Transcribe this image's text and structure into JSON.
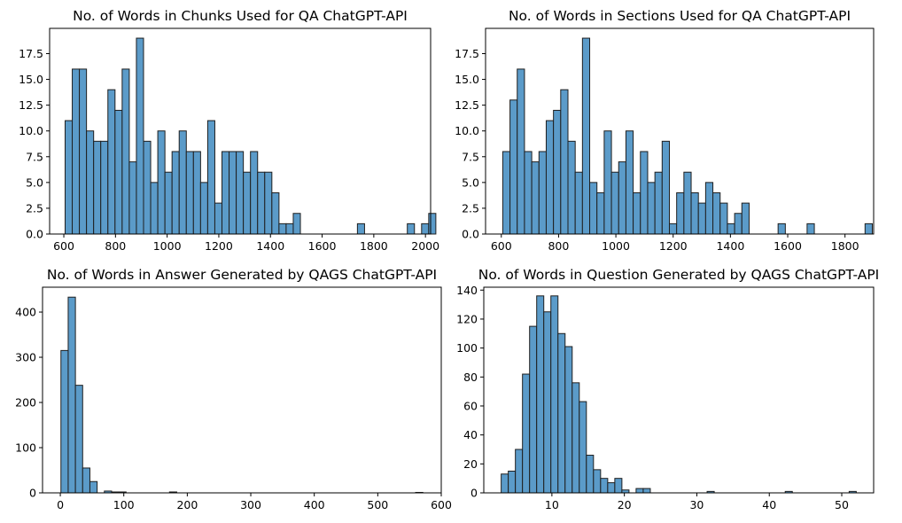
{
  "chart_data": [
    {
      "type": "histogram",
      "title": "No. of Words in Chunks Used for QA ChatGPT-API",
      "xlabel": "",
      "ylabel": "",
      "bin_start": 605,
      "bin_width": 27.6,
      "counts": [
        11,
        16,
        16,
        10,
        9,
        9,
        14,
        12,
        16,
        7,
        19,
        9,
        5,
        10,
        6,
        8,
        10,
        8,
        8,
        5,
        11,
        3,
        8,
        8,
        8,
        6,
        8,
        6,
        6,
        4,
        1,
        1,
        2,
        0,
        0,
        0,
        0,
        0,
        0,
        0,
        0,
        1,
        0,
        0,
        0,
        0,
        0,
        0,
        1,
        0,
        1,
        2
      ],
      "xlim": [
        545,
        2020
      ],
      "ylim": [
        0,
        19.95
      ],
      "xticks": [
        600,
        800,
        1000,
        1200,
        1400,
        1600,
        1800,
        2000
      ],
      "yticks": [
        0.0,
        2.5,
        5.0,
        7.5,
        10.0,
        12.5,
        15.0,
        17.5
      ],
      "ytick_labels": [
        "0.0",
        "2.5",
        "5.0",
        "7.5",
        "10.0",
        "12.5",
        "15.0",
        "17.5"
      ],
      "grid": false,
      "color": "#5b9bc9"
    },
    {
      "type": "histogram",
      "title": "No. of Words in Sections Used for QA ChatGPT-API",
      "xlabel": "",
      "ylabel": "",
      "bin_start": 605,
      "bin_width": 25.3,
      "counts": [
        8,
        13,
        16,
        8,
        7,
        8,
        11,
        12,
        14,
        9,
        6,
        19,
        5,
        4,
        10,
        6,
        7,
        10,
        4,
        8,
        5,
        6,
        9,
        1,
        4,
        6,
        4,
        3,
        5,
        4,
        3,
        1,
        2,
        3,
        0,
        0,
        0,
        0,
        1,
        0,
        0,
        0,
        1,
        0,
        0,
        0,
        0,
        0,
        0,
        0,
        1
      ],
      "xlim": [
        545,
        1900
      ],
      "ylim": [
        0,
        19.95
      ],
      "xticks": [
        600,
        800,
        1000,
        1200,
        1400,
        1600,
        1800
      ],
      "yticks": [
        0.0,
        2.5,
        5.0,
        7.5,
        10.0,
        12.5,
        15.0,
        17.5
      ],
      "ytick_labels": [
        "0.0",
        "2.5",
        "5.0",
        "7.5",
        "10.0",
        "12.5",
        "15.0",
        "17.5"
      ],
      "grid": false,
      "color": "#5b9bc9"
    },
    {
      "type": "histogram",
      "title": "No. of Words in Answer Generated by QAGS ChatGPT-API",
      "xlabel": "",
      "ylabel": "",
      "bin_start": 1,
      "bin_width": 11.4,
      "counts": [
        315,
        433,
        238,
        55,
        25,
        0,
        4,
        2,
        2,
        0,
        0,
        0,
        0,
        0,
        0,
        2,
        0,
        0,
        0,
        0,
        0,
        0,
        0,
        0,
        0,
        0,
        0,
        0,
        0,
        0,
        0,
        0,
        0,
        0,
        0,
        0,
        0,
        0,
        0,
        0,
        0,
        0,
        0,
        0,
        0,
        0,
        0,
        0,
        0,
        1
      ],
      "xlim": [
        -28,
        600
      ],
      "ylim": [
        0,
        455
      ],
      "xticks": [
        0,
        100,
        200,
        300,
        400,
        500,
        600
      ],
      "yticks": [
        0,
        100,
        200,
        300,
        400
      ],
      "ytick_labels": [
        "0",
        "100",
        "200",
        "300",
        "400"
      ],
      "grid": false,
      "color": "#5b9bc9"
    },
    {
      "type": "histogram",
      "title": "No. of Words in Question Generated by QAGS ChatGPT-API",
      "xlabel": "",
      "ylabel": "",
      "bin_start": 3,
      "bin_width": 0.98,
      "counts": [
        13,
        15,
        30,
        82,
        115,
        136,
        125,
        136,
        110,
        101,
        76,
        63,
        26,
        16,
        10,
        7,
        10,
        2,
        0,
        3,
        3,
        0,
        0,
        0,
        0,
        0,
        0,
        0,
        0,
        1,
        0,
        0,
        0,
        0,
        0,
        0,
        0,
        0,
        0,
        0,
        1,
        0,
        0,
        0,
        0,
        0,
        0,
        0,
        0,
        1
      ],
      "xlim": [
        0.6,
        54.4
      ],
      "ylim": [
        0,
        142
      ],
      "xticks": [
        10,
        20,
        30,
        40,
        50
      ],
      "yticks": [
        0,
        20,
        40,
        60,
        80,
        100,
        120,
        140
      ],
      "ytick_labels": [
        "0",
        "20",
        "40",
        "60",
        "80",
        "100",
        "120",
        "140"
      ],
      "grid": false,
      "color": "#5b9bc9"
    }
  ]
}
